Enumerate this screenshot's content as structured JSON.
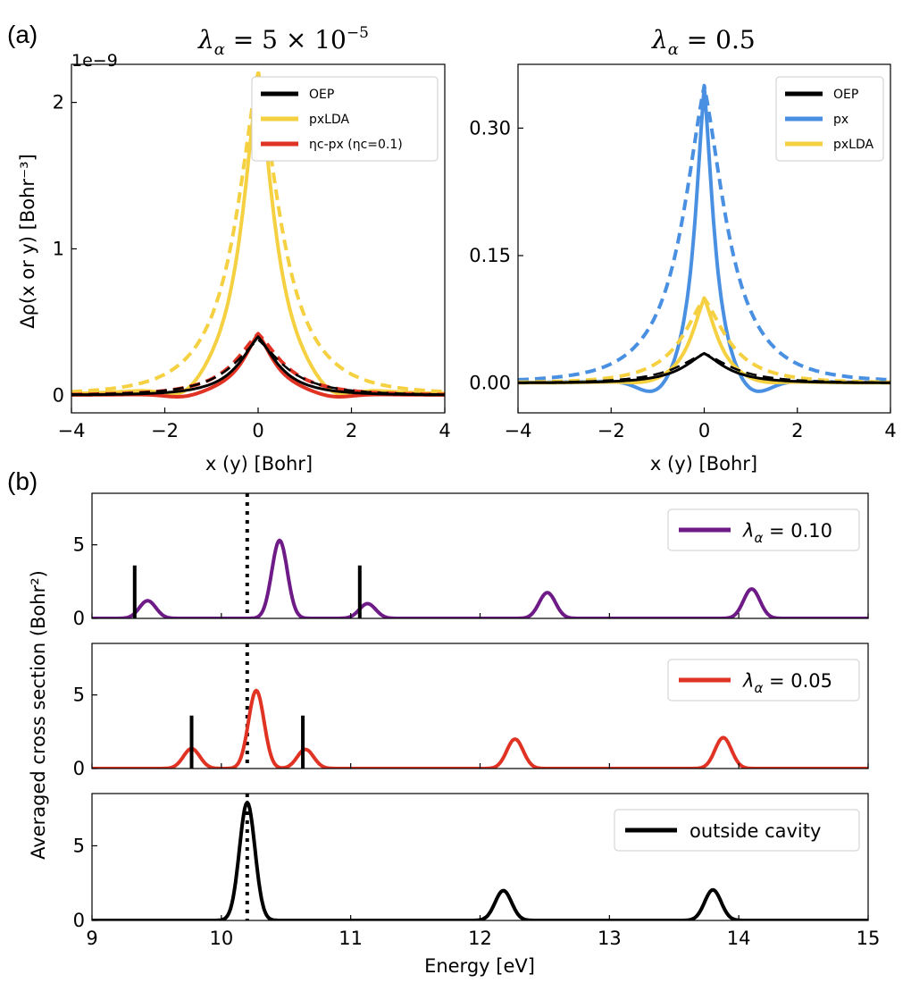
{
  "colors": {
    "oep": "#000000",
    "pxlda": "#f5d142",
    "px": "#4a90e2",
    "etac": "#e03323",
    "purple": "#6e1a87",
    "red": "#e03323",
    "black": "#000000"
  },
  "labels": {
    "panel_a": "(a)",
    "panel_b": "(b)",
    "title_left_sym": "λ",
    "title_left_sub": "α",
    "title_left_val": " = 5 × 10",
    "title_left_exp": "−5",
    "title_right_sym": "λ",
    "title_right_sub": "α",
    "title_right_val": " = 0.5",
    "sci_offset": "1e−9",
    "a_ylabel": "Δρ(x or y) [Bohr⁻³]",
    "a_xlabel": "x (y) [Bohr]",
    "b_ylabel": "Averaged cross section (Bohr²)",
    "b_xlabel": "Energy [eV]"
  },
  "chart_data": [
    {
      "type": "line",
      "id": "a-left",
      "xlabel": "x (y) [Bohr]",
      "ylabel": "Δρ(x or y) [Bohr⁻³]",
      "xlim": [
        -4,
        4
      ],
      "ylim": [
        -0.12,
        2.26
      ],
      "scale_note": "1e−9",
      "xticks": [
        -4,
        -2,
        0,
        2,
        4
      ],
      "xtick_labels": [
        "−4",
        "−2",
        "0",
        "2",
        "4"
      ],
      "yticks": [
        0,
        1,
        2
      ],
      "ytick_labels": [
        "0",
        "1",
        "2"
      ],
      "legend": [
        {
          "label": "OEP",
          "color": "#000000"
        },
        {
          "label": "pxLDA",
          "color": "#f5d142"
        },
        {
          "label": "ηc-px (ηc=0.1)",
          "color": "#e03323"
        }
      ],
      "series": [
        {
          "name": "pxLDA (x)",
          "color": "#f5d142",
          "dash": false,
          "width": 4,
          "amp": 2.2,
          "w": 0.55,
          "neg": 0.09,
          "nw": 1.6
        },
        {
          "name": "pxLDA (y)",
          "color": "#f5d142",
          "dash": true,
          "width": 4,
          "amp": 2.22,
          "w": 0.75,
          "neg": 0.0,
          "nw": 1.6
        },
        {
          "name": "ηc-px (x)",
          "color": "#e03323",
          "dash": false,
          "width": 4,
          "amp": 0.42,
          "w": 0.55,
          "neg": 0.03,
          "nw": 1.6
        },
        {
          "name": "ηc-px (y)",
          "color": "#e03323",
          "dash": true,
          "width": 4,
          "amp": 0.42,
          "w": 0.8,
          "neg": 0.0,
          "nw": 1.6
        },
        {
          "name": "OEP (x)",
          "color": "#000000",
          "dash": false,
          "width": 3,
          "amp": 0.4,
          "w": 0.65,
          "neg": 0.0,
          "nw": 1.6
        },
        {
          "name": "OEP (y)",
          "color": "#000000",
          "dash": true,
          "width": 2.5,
          "amp": 0.38,
          "w": 0.85,
          "neg": 0.0,
          "nw": 1.6
        }
      ]
    },
    {
      "type": "line",
      "id": "a-right",
      "xlabel": "x (y) [Bohr]",
      "ylabel": "",
      "xlim": [
        -4,
        4
      ],
      "ylim": [
        -0.035,
        0.375
      ],
      "xticks": [
        -4,
        -2,
        0,
        2,
        4
      ],
      "xtick_labels": [
        "−4",
        "−2",
        "0",
        "2",
        "4"
      ],
      "yticks": [
        0.0,
        0.15,
        0.3
      ],
      "ytick_labels": [
        "0.00",
        "0.15",
        "0.30"
      ],
      "legend": [
        {
          "label": "OEP",
          "color": "#000000"
        },
        {
          "label": "px",
          "color": "#4a90e2"
        },
        {
          "label": "pxLDA",
          "color": "#f5d142"
        }
      ],
      "series": [
        {
          "name": "px (x)",
          "color": "#4a90e2",
          "dash": false,
          "width": 4,
          "amp": 0.35,
          "w": 0.32,
          "neg": 0.022,
          "nw": 1.0
        },
        {
          "name": "px (y)",
          "color": "#4a90e2",
          "dash": true,
          "width": 4,
          "amp": 0.35,
          "w": 0.75,
          "neg": 0.0,
          "nw": 1.0
        },
        {
          "name": "pxLDA (x)",
          "color": "#f5d142",
          "dash": false,
          "width": 4,
          "amp": 0.1,
          "w": 0.45,
          "neg": 0.004,
          "nw": 1.2
        },
        {
          "name": "pxLDA (y)",
          "color": "#f5d142",
          "dash": true,
          "width": 4,
          "amp": 0.1,
          "w": 0.75,
          "neg": 0.0,
          "nw": 1.2
        },
        {
          "name": "OEP (x)",
          "color": "#000000",
          "dash": false,
          "width": 3,
          "amp": 0.035,
          "w": 0.7,
          "neg": 0.0,
          "nw": 1.2
        },
        {
          "name": "OEP (y)",
          "color": "#000000",
          "dash": true,
          "width": 2.5,
          "amp": 0.035,
          "w": 0.9,
          "neg": 0.0,
          "nw": 1.2
        }
      ]
    },
    {
      "type": "line",
      "id": "b-top",
      "xlim": [
        9,
        15
      ],
      "ylim": [
        0,
        8.5
      ],
      "yticks": [
        0,
        5
      ],
      "ytick_labels": [
        "0",
        "5"
      ],
      "legend": [
        {
          "label_sym": "λ",
          "label_sub": "α",
          "label_val": " = 0.10",
          "color": "#6e1a87"
        }
      ],
      "color": "#6e1a87",
      "peaks": [
        [
          9.43,
          1.2
        ],
        [
          10.45,
          5.3
        ],
        [
          11.13,
          1.0
        ],
        [
          12.52,
          1.75
        ],
        [
          14.1,
          2.0
        ]
      ],
      "sticks": [
        9.33,
        11.07
      ],
      "stick_height": 3.6,
      "dotted_x": 10.2
    },
    {
      "type": "line",
      "id": "b-mid",
      "xlim": [
        9,
        15
      ],
      "ylim": [
        0,
        8.5
      ],
      "yticks": [
        0,
        5
      ],
      "ytick_labels": [
        "0",
        "5"
      ],
      "legend": [
        {
          "label_sym": "λ",
          "label_sub": "α",
          "label_val": " = 0.05",
          "color": "#e03323"
        }
      ],
      "color": "#e03323",
      "peaks": [
        [
          9.77,
          1.35
        ],
        [
          10.27,
          5.3
        ],
        [
          10.65,
          1.3
        ],
        [
          12.27,
          2.0
        ],
        [
          13.88,
          2.1
        ]
      ],
      "sticks": [
        9.77,
        10.63
      ],
      "stick_height": 3.6,
      "dotted_x": 10.2
    },
    {
      "type": "line",
      "id": "b-bot",
      "xlim": [
        9,
        15
      ],
      "ylim": [
        0,
        8.5
      ],
      "yticks": [
        0,
        5
      ],
      "ytick_labels": [
        "0",
        "5"
      ],
      "xticks": [
        9,
        10,
        11,
        12,
        13,
        14,
        15
      ],
      "xtick_labels": [
        "9",
        "10",
        "11",
        "12",
        "13",
        "14",
        "15"
      ],
      "xlabel": "Energy [eV]",
      "legend": [
        {
          "label": "outside cavity",
          "color": "#000000"
        }
      ],
      "color": "#000000",
      "peaks": [
        [
          10.2,
          7.9
        ],
        [
          12.18,
          2.0
        ],
        [
          13.8,
          2.05
        ]
      ],
      "sticks": [],
      "dotted_x": 10.2
    }
  ]
}
